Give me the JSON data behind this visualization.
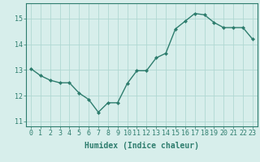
{
  "x": [
    0,
    1,
    2,
    3,
    4,
    5,
    6,
    7,
    8,
    9,
    10,
    11,
    12,
    13,
    14,
    15,
    16,
    17,
    18,
    19,
    20,
    21,
    22,
    23
  ],
  "y": [
    13.05,
    12.78,
    12.6,
    12.5,
    12.5,
    12.1,
    11.85,
    11.35,
    11.72,
    11.72,
    12.47,
    12.97,
    12.97,
    13.47,
    13.65,
    14.6,
    14.9,
    15.2,
    15.15,
    14.85,
    14.65,
    14.65,
    14.65,
    14.2
  ],
  "line_color": "#2e7d6e",
  "marker": "D",
  "marker_size": 2.0,
  "bg_color": "#d7eeeb",
  "grid_color": "#b0d8d2",
  "xlabel": "Humidex (Indice chaleur)",
  "xlabel_fontsize": 7,
  "ylim": [
    10.8,
    15.6
  ],
  "xlim": [
    -0.5,
    23.5
  ],
  "yticks": [
    11,
    12,
    13,
    14,
    15
  ],
  "xticks": [
    0,
    1,
    2,
    3,
    4,
    5,
    6,
    7,
    8,
    9,
    10,
    11,
    12,
    13,
    14,
    15,
    16,
    17,
    18,
    19,
    20,
    21,
    22,
    23
  ],
  "tick_color": "#2e7d6e",
  "tick_fontsize": 6,
  "spine_color": "#2e7d6e",
  "linewidth": 1.0
}
